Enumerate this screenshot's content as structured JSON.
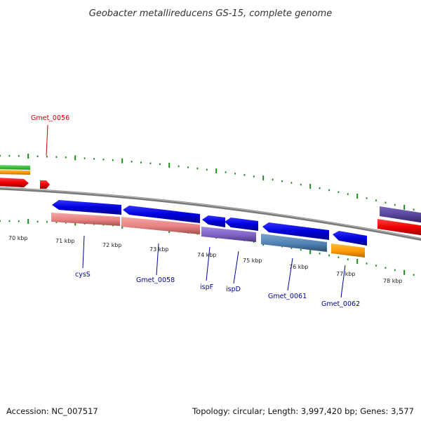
{
  "title": "Geobacter metallireducens GS-15, complete genome",
  "footer": {
    "accession": "Accession: NC_007517",
    "summary": "Topology: circular; Length: 3,997,420 bp; Genes: 3,577"
  },
  "tick_labels": [
    "70 kbp",
    "71 kbp",
    "72 kbp",
    "73 kbp",
    "74 kbp",
    "75 kbp",
    "76 kbp",
    "77 kbp",
    "78 kbp"
  ],
  "gene_labels": [
    {
      "text": "Gmet_0056",
      "color": "#cc0000"
    },
    {
      "text": "cysS",
      "color": "#000099"
    },
    {
      "text": "Gmet_0058",
      "color": "#000099"
    },
    {
      "text": "ispF",
      "color": "#000099"
    },
    {
      "text": "ispD",
      "color": "#000099"
    },
    {
      "text": "Gmet_0061",
      "color": "#000099"
    },
    {
      "text": "Gmet_0062",
      "color": "#000099"
    }
  ],
  "colors": {
    "backbone": "#888888",
    "tick": "#1a8a1a",
    "forward_gene": "#0000dd",
    "red_gene": "#ee0000",
    "salmon": "#ee8888",
    "purple": "#8866cc",
    "steelblue": "#5588bb",
    "orange": "#ff9900",
    "green": "#33bb33",
    "darkpurple": "#554499"
  }
}
